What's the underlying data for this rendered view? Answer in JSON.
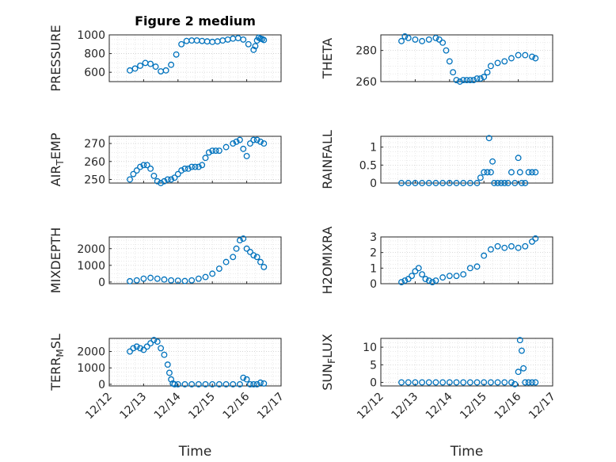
{
  "chart_data": [
    {
      "type": "scatter",
      "title": "Figure 2 medium",
      "ylabel": "PRESSURE",
      "ylim": [
        500,
        1000
      ],
      "yticks": [
        600,
        800,
        1000
      ],
      "x": [
        0.0,
        0.15,
        0.3,
        0.45,
        0.6,
        0.75,
        0.9,
        1.05,
        1.2,
        1.35,
        1.5,
        1.65,
        1.8,
        1.95,
        2.1,
        2.25,
        2.4,
        2.55,
        2.7,
        2.85,
        3.0,
        3.15,
        3.3,
        3.45,
        3.6,
        3.65,
        3.7,
        3.75,
        3.8,
        3.85,
        3.9
      ],
      "y": [
        620,
        640,
        670,
        700,
        690,
        660,
        610,
        620,
        680,
        790,
        900,
        935,
        940,
        940,
        935,
        930,
        925,
        930,
        940,
        950,
        960,
        965,
        950,
        900,
        840,
        880,
        940,
        970,
        960,
        955,
        945
      ],
      "xlabel": ""
    },
    {
      "type": "scatter",
      "ylabel": "THETA",
      "ylim": [
        260,
        290
      ],
      "yticks": [
        260,
        280
      ],
      "x": [
        0.0,
        0.1,
        0.2,
        0.4,
        0.6,
        0.8,
        1.0,
        1.1,
        1.2,
        1.3,
        1.4,
        1.5,
        1.6,
        1.7,
        1.8,
        1.9,
        2.0,
        2.1,
        2.2,
        2.3,
        2.4,
        2.5,
        2.6,
        2.8,
        3.0,
        3.2,
        3.4,
        3.6,
        3.8,
        3.9
      ],
      "y": [
        286,
        289,
        288,
        287,
        286,
        287,
        288,
        287,
        285,
        280,
        273,
        266,
        261,
        260,
        261,
        261,
        261,
        261,
        262,
        262,
        263,
        266,
        270,
        272,
        273,
        275,
        277,
        277,
        276,
        275
      ],
      "xlabel": ""
    },
    {
      "type": "scatter",
      "ylabel": "AIR_TEMP",
      "ylim": [
        248,
        274
      ],
      "yticks": [
        250,
        260,
        270
      ],
      "x": [
        0.0,
        0.1,
        0.2,
        0.3,
        0.4,
        0.5,
        0.6,
        0.7,
        0.8,
        0.9,
        1.0,
        1.1,
        1.2,
        1.3,
        1.4,
        1.5,
        1.6,
        1.7,
        1.8,
        1.9,
        2.0,
        2.1,
        2.2,
        2.3,
        2.4,
        2.5,
        2.6,
        2.8,
        3.0,
        3.1,
        3.2,
        3.3,
        3.4,
        3.5,
        3.6,
        3.7,
        3.8,
        3.9
      ],
      "y": [
        250,
        253,
        255,
        257,
        258,
        258,
        256,
        252,
        249,
        248,
        249,
        250,
        250,
        251,
        253,
        255,
        256,
        256,
        257,
        257,
        257,
        258,
        262,
        265,
        266,
        266,
        266,
        268,
        270,
        271,
        272,
        267,
        263,
        270,
        272,
        272,
        271,
        270
      ],
      "xlabel": ""
    },
    {
      "type": "scatter",
      "ylabel": "RAINFALL",
      "ylim": [
        0,
        1.3
      ],
      "yticks": [
        0,
        0.5,
        1
      ],
      "x": [
        0.0,
        0.2,
        0.4,
        0.6,
        0.8,
        1.0,
        1.2,
        1.4,
        1.6,
        1.8,
        2.0,
        2.2,
        2.3,
        2.4,
        2.5,
        2.55,
        2.6,
        2.65,
        2.7,
        2.8,
        2.9,
        3.0,
        3.1,
        3.2,
        3.3,
        3.4,
        3.45,
        3.5,
        3.6,
        3.7,
        3.8,
        3.9
      ],
      "y": [
        0,
        0,
        0,
        0,
        0,
        0,
        0,
        0,
        0,
        0,
        0,
        0,
        0.15,
        0.3,
        0.3,
        1.25,
        0.3,
        0.6,
        0,
        0,
        0,
        0,
        0,
        0.3,
        0,
        0.7,
        0.3,
        0,
        0,
        0.3,
        0.3,
        0.3
      ],
      "xlabel": ""
    },
    {
      "type": "scatter",
      "ylabel": "MIXDEPTH",
      "ylim": [
        -100,
        2700
      ],
      "yticks": [
        0,
        1000,
        2000
      ],
      "x": [
        0.0,
        0.2,
        0.4,
        0.6,
        0.8,
        1.0,
        1.2,
        1.4,
        1.6,
        1.8,
        2.0,
        2.2,
        2.4,
        2.6,
        2.8,
        3.0,
        3.1,
        3.2,
        3.3,
        3.4,
        3.5,
        3.6,
        3.7,
        3.8,
        3.9
      ],
      "y": [
        50,
        100,
        200,
        250,
        200,
        150,
        100,
        80,
        60,
        100,
        200,
        300,
        500,
        800,
        1200,
        1500,
        2000,
        2500,
        2600,
        2000,
        1800,
        1600,
        1500,
        1200,
        900
      ],
      "xlabel": ""
    },
    {
      "type": "scatter",
      "ylabel": "H2OMIXRA",
      "ylim": [
        0,
        3
      ],
      "yticks": [
        0,
        1,
        2,
        3
      ],
      "x": [
        0.0,
        0.1,
        0.2,
        0.3,
        0.4,
        0.5,
        0.6,
        0.7,
        0.8,
        0.9,
        1.0,
        1.2,
        1.4,
        1.6,
        1.8,
        2.0,
        2.2,
        2.4,
        2.6,
        2.8,
        3.0,
        3.2,
        3.4,
        3.6,
        3.8,
        3.9
      ],
      "y": [
        0.1,
        0.2,
        0.3,
        0.5,
        0.8,
        1.0,
        0.6,
        0.3,
        0.2,
        0.1,
        0.2,
        0.4,
        0.5,
        0.5,
        0.6,
        1.0,
        1.1,
        1.8,
        2.2,
        2.4,
        2.3,
        2.4,
        2.3,
        2.4,
        2.7,
        2.9
      ],
      "xlabel": ""
    },
    {
      "type": "scatter",
      "ylabel": "TERR_MSL",
      "ylim": [
        -100,
        2800
      ],
      "yticks": [
        0,
        1000,
        2000
      ],
      "x": [
        0.0,
        0.1,
        0.2,
        0.3,
        0.4,
        0.5,
        0.6,
        0.7,
        0.8,
        0.9,
        1.0,
        1.1,
        1.15,
        1.2,
        1.25,
        1.3,
        1.4,
        1.6,
        1.8,
        2.0,
        2.2,
        2.4,
        2.6,
        2.8,
        3.0,
        3.2,
        3.3,
        3.4,
        3.5,
        3.6,
        3.7,
        3.8,
        3.9
      ],
      "y": [
        2000,
        2200,
        2300,
        2200,
        2100,
        2300,
        2500,
        2700,
        2600,
        2200,
        1800,
        1200,
        700,
        300,
        50,
        0,
        0,
        0,
        0,
        0,
        0,
        0,
        0,
        0,
        0,
        0,
        400,
        300,
        0,
        0,
        0,
        100,
        50
      ],
      "xlabel": "Time"
    },
    {
      "type": "scatter",
      "ylabel": "SUN_FLUX",
      "ylim": [
        -1,
        12.5
      ],
      "yticks": [
        0,
        5,
        10
      ],
      "x": [
        0.0,
        0.2,
        0.4,
        0.6,
        0.8,
        1.0,
        1.2,
        1.4,
        1.6,
        1.8,
        2.0,
        2.2,
        2.4,
        2.6,
        2.8,
        3.0,
        3.2,
        3.3,
        3.4,
        3.45,
        3.5,
        3.55,
        3.6,
        3.7,
        3.8,
        3.9
      ],
      "y": [
        0,
        0,
        0,
        0,
        0,
        0,
        0,
        0,
        0,
        0,
        0,
        0,
        0,
        0,
        0,
        0,
        0,
        -0.5,
        3,
        12,
        9,
        4,
        0,
        0,
        0,
        0
      ],
      "xlabel": "Time"
    }
  ],
  "x_axis": {
    "ticks": [
      "12/12",
      "12/13",
      "12/14",
      "12/15",
      "12/16",
      "12/17"
    ],
    "data_start": 0.6,
    "range": [
      0,
      5
    ]
  }
}
